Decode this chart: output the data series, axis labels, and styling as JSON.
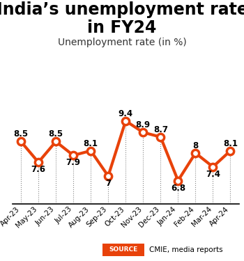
{
  "title_line1": "India’s unemployment rate",
  "title_line2": "in FY24",
  "subtitle": "Unemployment rate (in %)",
  "months": [
    "Apr-23",
    "May-23",
    "Jun-23",
    "Jul-23",
    "Aug-23",
    "Sep-23",
    "Oct-23",
    "Nov-23",
    "Dec-23",
    "Jan-24",
    "Feb-24",
    "Mar-24",
    "Apr-24"
  ],
  "values": [
    8.5,
    7.6,
    8.5,
    7.9,
    8.1,
    7.0,
    9.4,
    8.9,
    8.7,
    6.8,
    8.0,
    7.4,
    8.1
  ],
  "labels": [
    "8.5",
    "7.6",
    "8.5",
    "7.9",
    "8.1",
    "7",
    "9.4",
    "8.9",
    "8.7",
    "6.8",
    "8",
    "7.4",
    "8.1"
  ],
  "label_offsets": [
    0.32,
    -0.32,
    0.32,
    -0.32,
    0.32,
    -0.32,
    0.32,
    0.32,
    0.32,
    -0.32,
    0.32,
    -0.32,
    0.32
  ],
  "line_color": "#E8420A",
  "marker_color": "#E8420A",
  "marker_face": "#ffffff",
  "source_box_color": "#E8420A",
  "source_text": "CMIE, media reports",
  "background_color": "#ffffff",
  "ylim": [
    5.8,
    10.8
  ],
  "title_fontsize": 17,
  "subtitle_fontsize": 10,
  "label_fontsize": 8.5,
  "tick_fontsize": 7.5
}
